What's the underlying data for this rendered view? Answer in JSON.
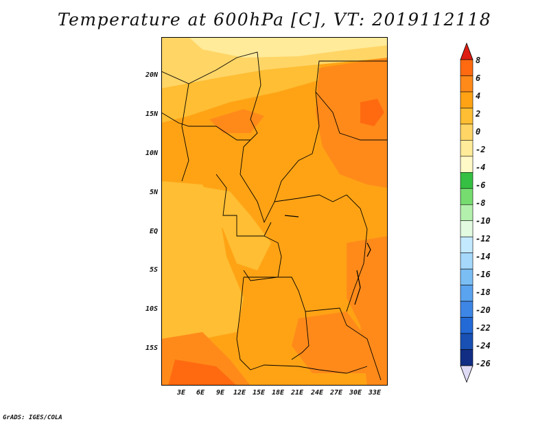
{
  "title": "Temperature at 600hPa [C], VT: 2019112118",
  "credit": "GrADS: IGES/COLA",
  "map": {
    "lat_labels": [
      "20N",
      "15N",
      "10N",
      "5N",
      "EQ",
      "5S",
      "10S",
      "15S"
    ],
    "lon_labels": [
      "3E",
      "6E",
      "9E",
      "12E",
      "15E",
      "18E",
      "21E",
      "24E",
      "27E",
      "30E",
      "33E"
    ],
    "extent": {
      "lon_min": 0.5,
      "lon_max": 34.5,
      "lat_min": -20,
      "lat_max": 24.5
    }
  },
  "colorbar": {
    "labels": [
      "8",
      "6",
      "4",
      "2",
      "0",
      "-2",
      "-4",
      "-6",
      "-8",
      "-10",
      "-12",
      "-14",
      "-16",
      "-18",
      "-20",
      "-22",
      "-24",
      "-26"
    ],
    "colors": [
      "#ff3a12",
      "#ff6a10",
      "#ff8a1a",
      "#ffa315",
      "#ffbe33",
      "#ffd566",
      "#ffeb99",
      "#fff8c7",
      "#36c043",
      "#76dc70",
      "#b4f0ad",
      "#e2fbe0",
      "#c3e9ff",
      "#a5d8fb",
      "#7bbef4",
      "#5aa3ef",
      "#3e86e6",
      "#236ad6",
      "#1850b4",
      "#112e84",
      "#e0dbf5"
    ]
  }
}
